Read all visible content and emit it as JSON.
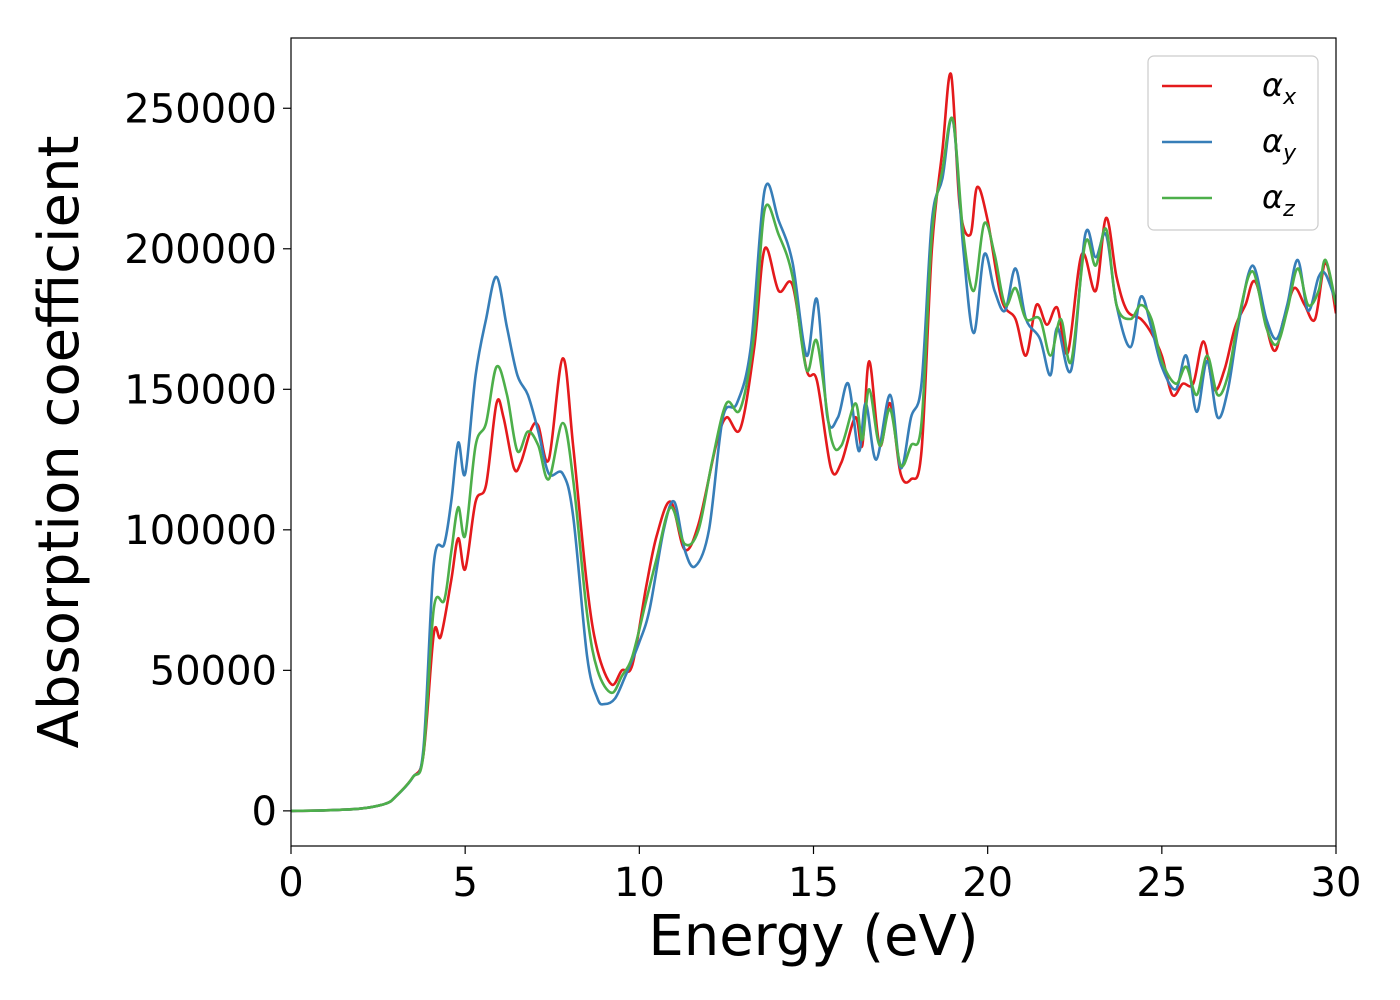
{
  "chart_data": {
    "type": "line",
    "title": "",
    "xlabel": "Energy (eV)",
    "ylabel": "Absorption coefficient",
    "xlim": [
      0,
      30
    ],
    "ylim": [
      -12500,
      275000
    ],
    "xticks": [
      0,
      5,
      10,
      15,
      20,
      25,
      30
    ],
    "yticks": [
      0,
      50000,
      100000,
      150000,
      200000,
      250000
    ],
    "grid": false,
    "legend_position": "top-right",
    "series": [
      {
        "name": "α",
        "subscript": "x",
        "color": "#e41a1c",
        "points": [
          [
            0,
            0
          ],
          [
            1,
            200
          ],
          [
            2,
            800
          ],
          [
            2.7,
            2500
          ],
          [
            3,
            5000
          ],
          [
            3.5,
            12000
          ],
          [
            3.8,
            20000
          ],
          [
            4.1,
            63000
          ],
          [
            4.3,
            62000
          ],
          [
            4.6,
            82000
          ],
          [
            4.8,
            97000
          ],
          [
            5.0,
            86000
          ],
          [
            5.3,
            110000
          ],
          [
            5.6,
            116000
          ],
          [
            5.9,
            145000
          ],
          [
            6.1,
            140000
          ],
          [
            6.4,
            122000
          ],
          [
            6.6,
            124000
          ],
          [
            6.9,
            136000
          ],
          [
            7.1,
            137000
          ],
          [
            7.4,
            125000
          ],
          [
            7.8,
            161000
          ],
          [
            8.1,
            130000
          ],
          [
            8.5,
            80000
          ],
          [
            8.8,
            57000
          ],
          [
            9.2,
            45000
          ],
          [
            9.5,
            50000
          ],
          [
            9.8,
            52000
          ],
          [
            10.2,
            80000
          ],
          [
            10.5,
            98000
          ],
          [
            10.9,
            110000
          ],
          [
            11.3,
            93000
          ],
          [
            11.7,
            102000
          ],
          [
            12.2,
            130000
          ],
          [
            12.5,
            140000
          ],
          [
            12.9,
            136000
          ],
          [
            13.3,
            165000
          ],
          [
            13.6,
            200000
          ],
          [
            14.0,
            185000
          ],
          [
            14.4,
            187000
          ],
          [
            14.8,
            157000
          ],
          [
            15.1,
            153000
          ],
          [
            15.5,
            122000
          ],
          [
            15.8,
            124000
          ],
          [
            16.2,
            140000
          ],
          [
            16.4,
            130000
          ],
          [
            16.6,
            160000
          ],
          [
            16.9,
            130000
          ],
          [
            17.2,
            145000
          ],
          [
            17.5,
            120000
          ],
          [
            17.8,
            118000
          ],
          [
            18.1,
            128000
          ],
          [
            18.4,
            200000
          ],
          [
            18.7,
            235000
          ],
          [
            18.95,
            262000
          ],
          [
            19.2,
            215000
          ],
          [
            19.5,
            205000
          ],
          [
            19.7,
            222000
          ],
          [
            20.0,
            210000
          ],
          [
            20.4,
            182000
          ],
          [
            20.8,
            175000
          ],
          [
            21.1,
            162000
          ],
          [
            21.4,
            180000
          ],
          [
            21.7,
            173000
          ],
          [
            22.0,
            179000
          ],
          [
            22.3,
            163000
          ],
          [
            22.7,
            198000
          ],
          [
            23.1,
            185000
          ],
          [
            23.4,
            211000
          ],
          [
            23.7,
            190000
          ],
          [
            24.0,
            178000
          ],
          [
            24.4,
            175000
          ],
          [
            24.7,
            170000
          ],
          [
            25.0,
            162000
          ],
          [
            25.3,
            148000
          ],
          [
            25.6,
            152000
          ],
          [
            25.9,
            152000
          ],
          [
            26.2,
            167000
          ],
          [
            26.5,
            150000
          ],
          [
            26.8,
            157000
          ],
          [
            27.1,
            172000
          ],
          [
            27.4,
            180000
          ],
          [
            27.7,
            188000
          ],
          [
            28.2,
            164000
          ],
          [
            28.5,
            175000
          ],
          [
            28.8,
            186000
          ],
          [
            29.1,
            180000
          ],
          [
            29.4,
            175000
          ],
          [
            29.7,
            195000
          ],
          [
            30.0,
            177000
          ]
        ]
      },
      {
        "name": "α",
        "subscript": "y",
        "color": "#377eb8",
        "points": [
          [
            0,
            0
          ],
          [
            1,
            200
          ],
          [
            2,
            800
          ],
          [
            2.7,
            2500
          ],
          [
            3,
            5000
          ],
          [
            3.5,
            12000
          ],
          [
            3.8,
            22000
          ],
          [
            4.1,
            88000
          ],
          [
            4.4,
            95000
          ],
          [
            4.6,
            110000
          ],
          [
            4.8,
            131000
          ],
          [
            5.0,
            120000
          ],
          [
            5.3,
            155000
          ],
          [
            5.6,
            175000
          ],
          [
            5.9,
            190000
          ],
          [
            6.2,
            172000
          ],
          [
            6.5,
            155000
          ],
          [
            6.8,
            148000
          ],
          [
            7.1,
            135000
          ],
          [
            7.4,
            120000
          ],
          [
            7.8,
            120000
          ],
          [
            8.1,
            105000
          ],
          [
            8.5,
            55000
          ],
          [
            8.8,
            40000
          ],
          [
            9.0,
            38000
          ],
          [
            9.3,
            40000
          ],
          [
            9.6,
            48000
          ],
          [
            10.0,
            60000
          ],
          [
            10.3,
            72000
          ],
          [
            10.7,
            100000
          ],
          [
            11.0,
            110000
          ],
          [
            11.3,
            93000
          ],
          [
            11.6,
            87000
          ],
          [
            12.0,
            100000
          ],
          [
            12.4,
            140000
          ],
          [
            12.8,
            145000
          ],
          [
            13.2,
            165000
          ],
          [
            13.6,
            221000
          ],
          [
            14.0,
            210000
          ],
          [
            14.4,
            195000
          ],
          [
            14.8,
            162000
          ],
          [
            15.1,
            182000
          ],
          [
            15.4,
            140000
          ],
          [
            15.7,
            140000
          ],
          [
            16.0,
            152000
          ],
          [
            16.3,
            128000
          ],
          [
            16.5,
            145000
          ],
          [
            16.8,
            125000
          ],
          [
            17.2,
            148000
          ],
          [
            17.5,
            122000
          ],
          [
            17.8,
            140000
          ],
          [
            18.1,
            152000
          ],
          [
            18.4,
            210000
          ],
          [
            18.7,
            225000
          ],
          [
            19.0,
            246000
          ],
          [
            19.3,
            200000
          ],
          [
            19.6,
            170000
          ],
          [
            19.9,
            198000
          ],
          [
            20.2,
            185000
          ],
          [
            20.5,
            178000
          ],
          [
            20.8,
            193000
          ],
          [
            21.1,
            175000
          ],
          [
            21.5,
            168000
          ],
          [
            21.8,
            155000
          ],
          [
            22.0,
            172000
          ],
          [
            22.4,
            157000
          ],
          [
            22.8,
            205000
          ],
          [
            23.1,
            197000
          ],
          [
            23.4,
            205000
          ],
          [
            23.7,
            180000
          ],
          [
            24.1,
            165000
          ],
          [
            24.4,
            183000
          ],
          [
            24.7,
            172000
          ],
          [
            25.0,
            158000
          ],
          [
            25.4,
            150000
          ],
          [
            25.7,
            162000
          ],
          [
            26.0,
            142000
          ],
          [
            26.3,
            160000
          ],
          [
            26.6,
            140000
          ],
          [
            26.9,
            150000
          ],
          [
            27.2,
            173000
          ],
          [
            27.6,
            194000
          ],
          [
            28.0,
            175000
          ],
          [
            28.3,
            168000
          ],
          [
            28.6,
            180000
          ],
          [
            28.9,
            196000
          ],
          [
            29.2,
            178000
          ],
          [
            29.5,
            190000
          ],
          [
            29.7,
            191000
          ],
          [
            30.0,
            181000
          ]
        ]
      },
      {
        "name": "α",
        "subscript": "z",
        "color": "#4daf4a",
        "points": [
          [
            0,
            0
          ],
          [
            1,
            200
          ],
          [
            2,
            800
          ],
          [
            2.7,
            2500
          ],
          [
            3,
            5000
          ],
          [
            3.5,
            12000
          ],
          [
            3.8,
            20000
          ],
          [
            4.1,
            72000
          ],
          [
            4.4,
            75000
          ],
          [
            4.6,
            92000
          ],
          [
            4.8,
            108000
          ],
          [
            5.0,
            98000
          ],
          [
            5.3,
            130000
          ],
          [
            5.6,
            138000
          ],
          [
            5.9,
            158000
          ],
          [
            6.2,
            148000
          ],
          [
            6.5,
            128000
          ],
          [
            6.8,
            135000
          ],
          [
            7.1,
            130000
          ],
          [
            7.4,
            118000
          ],
          [
            7.8,
            138000
          ],
          [
            8.1,
            118000
          ],
          [
            8.5,
            70000
          ],
          [
            8.8,
            50000
          ],
          [
            9.2,
            42000
          ],
          [
            9.5,
            48000
          ],
          [
            9.8,
            55000
          ],
          [
            10.2,
            75000
          ],
          [
            10.5,
            90000
          ],
          [
            10.9,
            108000
          ],
          [
            11.3,
            95000
          ],
          [
            11.7,
            100000
          ],
          [
            12.1,
            125000
          ],
          [
            12.5,
            145000
          ],
          [
            12.9,
            143000
          ],
          [
            13.3,
            170000
          ],
          [
            13.6,
            214000
          ],
          [
            14.0,
            205000
          ],
          [
            14.4,
            190000
          ],
          [
            14.8,
            157000
          ],
          [
            15.1,
            167000
          ],
          [
            15.5,
            133000
          ],
          [
            15.8,
            130000
          ],
          [
            16.2,
            145000
          ],
          [
            16.4,
            132000
          ],
          [
            16.6,
            150000
          ],
          [
            16.9,
            130000
          ],
          [
            17.2,
            143000
          ],
          [
            17.5,
            123000
          ],
          [
            17.8,
            130000
          ],
          [
            18.1,
            138000
          ],
          [
            18.4,
            205000
          ],
          [
            18.7,
            228000
          ],
          [
            19.0,
            246000
          ],
          [
            19.3,
            205000
          ],
          [
            19.6,
            185000
          ],
          [
            19.9,
            209000
          ],
          [
            20.2,
            198000
          ],
          [
            20.5,
            180000
          ],
          [
            20.8,
            186000
          ],
          [
            21.1,
            175000
          ],
          [
            21.5,
            175000
          ],
          [
            21.8,
            162000
          ],
          [
            22.1,
            175000
          ],
          [
            22.4,
            160000
          ],
          [
            22.8,
            202000
          ],
          [
            23.1,
            194000
          ],
          [
            23.4,
            207000
          ],
          [
            23.7,
            180000
          ],
          [
            24.1,
            175000
          ],
          [
            24.4,
            180000
          ],
          [
            24.7,
            175000
          ],
          [
            25.0,
            160000
          ],
          [
            25.4,
            152000
          ],
          [
            25.7,
            158000
          ],
          [
            26.0,
            148000
          ],
          [
            26.3,
            162000
          ],
          [
            26.6,
            148000
          ],
          [
            26.9,
            155000
          ],
          [
            27.2,
            175000
          ],
          [
            27.6,
            192000
          ],
          [
            28.0,
            172000
          ],
          [
            28.3,
            166000
          ],
          [
            28.6,
            178000
          ],
          [
            28.9,
            193000
          ],
          [
            29.2,
            180000
          ],
          [
            29.5,
            185000
          ],
          [
            29.7,
            196000
          ],
          [
            30.0,
            180000
          ]
        ]
      }
    ]
  }
}
